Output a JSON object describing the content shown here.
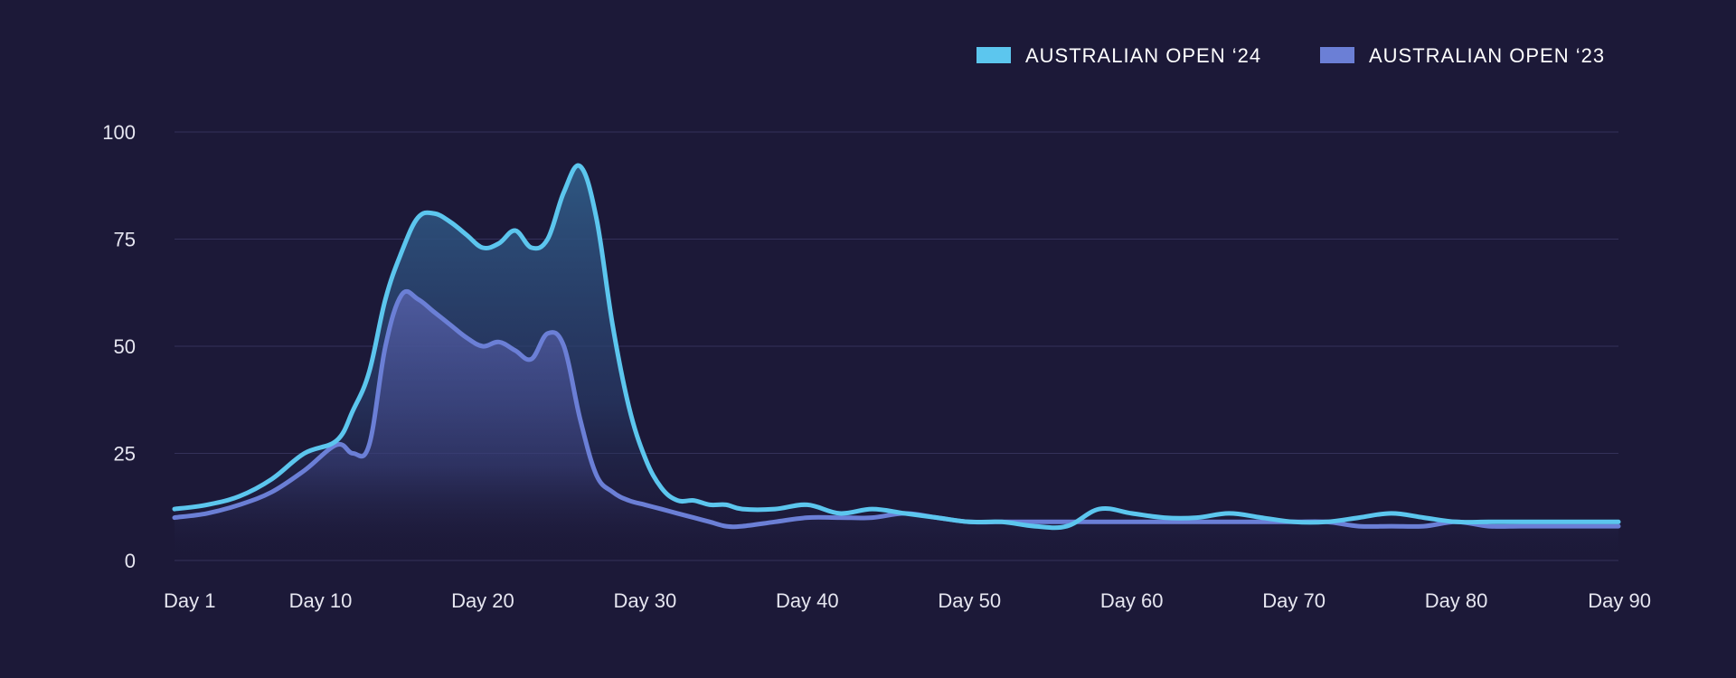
{
  "colors": {
    "background": "#1c1938",
    "grid": "#34315a",
    "series_2024": "#5cc6ee",
    "series_2023": "#6b7fd6",
    "text": "#ffffff"
  },
  "chart_data": {
    "type": "area",
    "title": "",
    "xlabel": "",
    "ylabel": "",
    "xlim": [
      1,
      90
    ],
    "ylim": [
      0,
      100
    ],
    "grid": true,
    "legend_position": "top-right",
    "x_ticks": [
      {
        "value": 1,
        "label": "Day 1"
      },
      {
        "value": 10,
        "label": "Day 10"
      },
      {
        "value": 20,
        "label": "Day 20"
      },
      {
        "value": 30,
        "label": "Day 30"
      },
      {
        "value": 40,
        "label": "Day 40"
      },
      {
        "value": 50,
        "label": "Day 50"
      },
      {
        "value": 60,
        "label": "Day 60"
      },
      {
        "value": 70,
        "label": "Day 70"
      },
      {
        "value": 80,
        "label": "Day 80"
      },
      {
        "value": 90,
        "label": "Day 90"
      }
    ],
    "y_ticks": [
      {
        "value": 0,
        "label": "0"
      },
      {
        "value": 25,
        "label": "25"
      },
      {
        "value": 50,
        "label": "50"
      },
      {
        "value": 75,
        "label": "75"
      },
      {
        "value": 100,
        "label": "100"
      }
    ],
    "series": [
      {
        "name": "AUSTRALIAN OPEN ‘24",
        "color": "#5cc6ee",
        "x": [
          1,
          3,
          5,
          7,
          9,
          11,
          12,
          13,
          14,
          15,
          16,
          17,
          18,
          19,
          20,
          21,
          22,
          23,
          24,
          25,
          26,
          27,
          28,
          29,
          30,
          31,
          32,
          33,
          34,
          35,
          36,
          38,
          40,
          42,
          44,
          46,
          48,
          50,
          52,
          54,
          56,
          58,
          60,
          62,
          64,
          66,
          68,
          70,
          72,
          74,
          76,
          78,
          80,
          82,
          84,
          86,
          88,
          90
        ],
        "y": [
          12,
          13,
          15,
          19,
          25,
          28,
          35,
          44,
          61,
          72,
          80,
          81,
          79,
          76,
          73,
          74,
          77,
          73,
          75,
          86,
          92,
          80,
          55,
          36,
          24,
          17,
          14,
          14,
          13,
          13,
          12,
          12,
          13,
          11,
          12,
          11,
          10,
          9,
          9,
          8,
          8,
          12,
          11,
          10,
          10,
          11,
          10,
          9,
          9,
          10,
          11,
          10,
          9,
          9,
          9,
          9,
          9,
          9
        ]
      },
      {
        "name": "AUSTRALIAN OPEN ‘23",
        "color": "#6b7fd6",
        "x": [
          1,
          3,
          5,
          7,
          9,
          11,
          12,
          13,
          14,
          15,
          16,
          17,
          18,
          19,
          20,
          21,
          22,
          23,
          24,
          25,
          26,
          27,
          28,
          29,
          30,
          31,
          32,
          33,
          34,
          35,
          36,
          38,
          40,
          42,
          44,
          46,
          48,
          50,
          52,
          54,
          56,
          58,
          60,
          62,
          64,
          66,
          68,
          70,
          72,
          74,
          76,
          78,
          80,
          82,
          84,
          86,
          88,
          90
        ],
        "y": [
          10,
          11,
          13,
          16,
          21,
          27,
          25,
          27,
          50,
          62,
          61,
          58,
          55,
          52,
          50,
          51,
          49,
          47,
          53,
          50,
          33,
          20,
          16,
          14,
          13,
          12,
          11,
          10,
          9,
          8,
          8,
          9,
          10,
          10,
          10,
          11,
          10,
          9,
          9,
          9,
          9,
          9,
          9,
          9,
          9,
          9,
          9,
          9,
          9,
          8,
          8,
          8,
          9,
          8,
          8,
          8,
          8,
          8
        ]
      }
    ]
  }
}
